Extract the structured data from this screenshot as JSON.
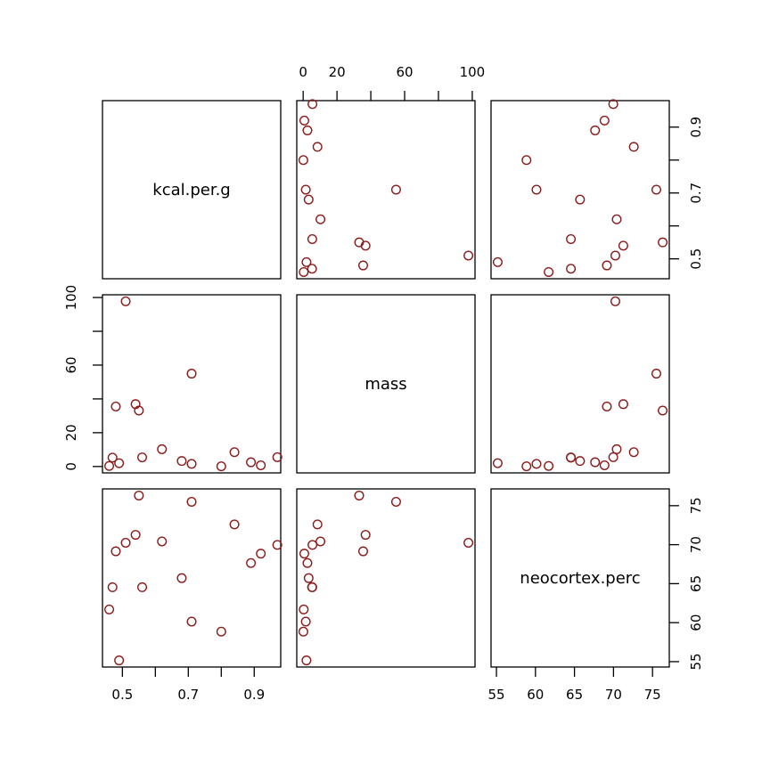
{
  "figure": {
    "background": "#FFFFFF",
    "panel_border_color": "#000000",
    "point_color": "#8B1A1A",
    "tick_color": "#000000"
  },
  "chart_data": {
    "type": "scatter",
    "layout": "pairs-matrix-3x3",
    "title": "",
    "legend": "none",
    "grid": "off",
    "marker": "open-circle",
    "variables": [
      {
        "key": "kcal",
        "label": "kcal.per.g",
        "ticks": [
          0.5,
          0.6,
          0.7,
          0.8,
          0.9
        ],
        "tick_labels": [
          "0.5",
          "",
          "0.7",
          "",
          "0.9"
        ],
        "range": [
          0.4396,
          0.9804
        ]
      },
      {
        "key": "mass",
        "label": "mass",
        "ticks": [
          0,
          20,
          40,
          60,
          80,
          100
        ],
        "tick_labels": [
          "0",
          "20",
          "",
          "60",
          "",
          "100"
        ],
        "range": [
          -3.784,
          101.624
        ]
      },
      {
        "key": "neocortex",
        "label": "neocortex.perc",
        "ticks": [
          55,
          60,
          65,
          70,
          75
        ],
        "tick_labels": [
          "55",
          "60",
          "65",
          "70",
          "75"
        ],
        "range": [
          54.31,
          77.15
        ]
      }
    ],
    "axis_sides": {
      "top": "mass (above row 1, col 2)",
      "left": "mass (row 2)",
      "right_row1": "kcal.per.g",
      "right_row3": "neocortex.perc",
      "bottom_col1": "kcal.per.g",
      "bottom_col3": "neocortex.perc"
    },
    "points": [
      {
        "kcal": 0.49,
        "mass": 1.95,
        "neocortex": 55.16
      },
      {
        "kcal": 0.47,
        "mass": 5.25,
        "neocortex": 64.54
      },
      {
        "kcal": 0.56,
        "mass": 5.37,
        "neocortex": 64.54
      },
      {
        "kcal": 0.89,
        "mass": 2.51,
        "neocortex": 67.64
      },
      {
        "kcal": 0.92,
        "mass": 0.68,
        "neocortex": 68.85
      },
      {
        "kcal": 0.8,
        "mass": 0.12,
        "neocortex": 58.85
      },
      {
        "kcal": 0.46,
        "mass": 0.32,
        "neocortex": 61.69
      },
      {
        "kcal": 0.71,
        "mass": 1.55,
        "neocortex": 60.13
      },
      {
        "kcal": 0.68,
        "mass": 3.24,
        "neocortex": 65.71
      },
      {
        "kcal": 0.97,
        "mass": 5.49,
        "neocortex": 69.97
      },
      {
        "kcal": 0.84,
        "mass": 8.46,
        "neocortex": 72.6
      },
      {
        "kcal": 0.62,
        "mass": 10.22,
        "neocortex": 70.41
      },
      {
        "kcal": 0.54,
        "mass": 36.9,
        "neocortex": 71.26
      },
      {
        "kcal": 0.51,
        "mass": 97.72,
        "neocortex": 70.24
      },
      {
        "kcal": 0.48,
        "mass": 35.48,
        "neocortex": 69.15
      },
      {
        "kcal": 0.55,
        "mass": 33.11,
        "neocortex": 76.3
      },
      {
        "kcal": 0.71,
        "mass": 54.95,
        "neocortex": 75.49
      }
    ]
  }
}
